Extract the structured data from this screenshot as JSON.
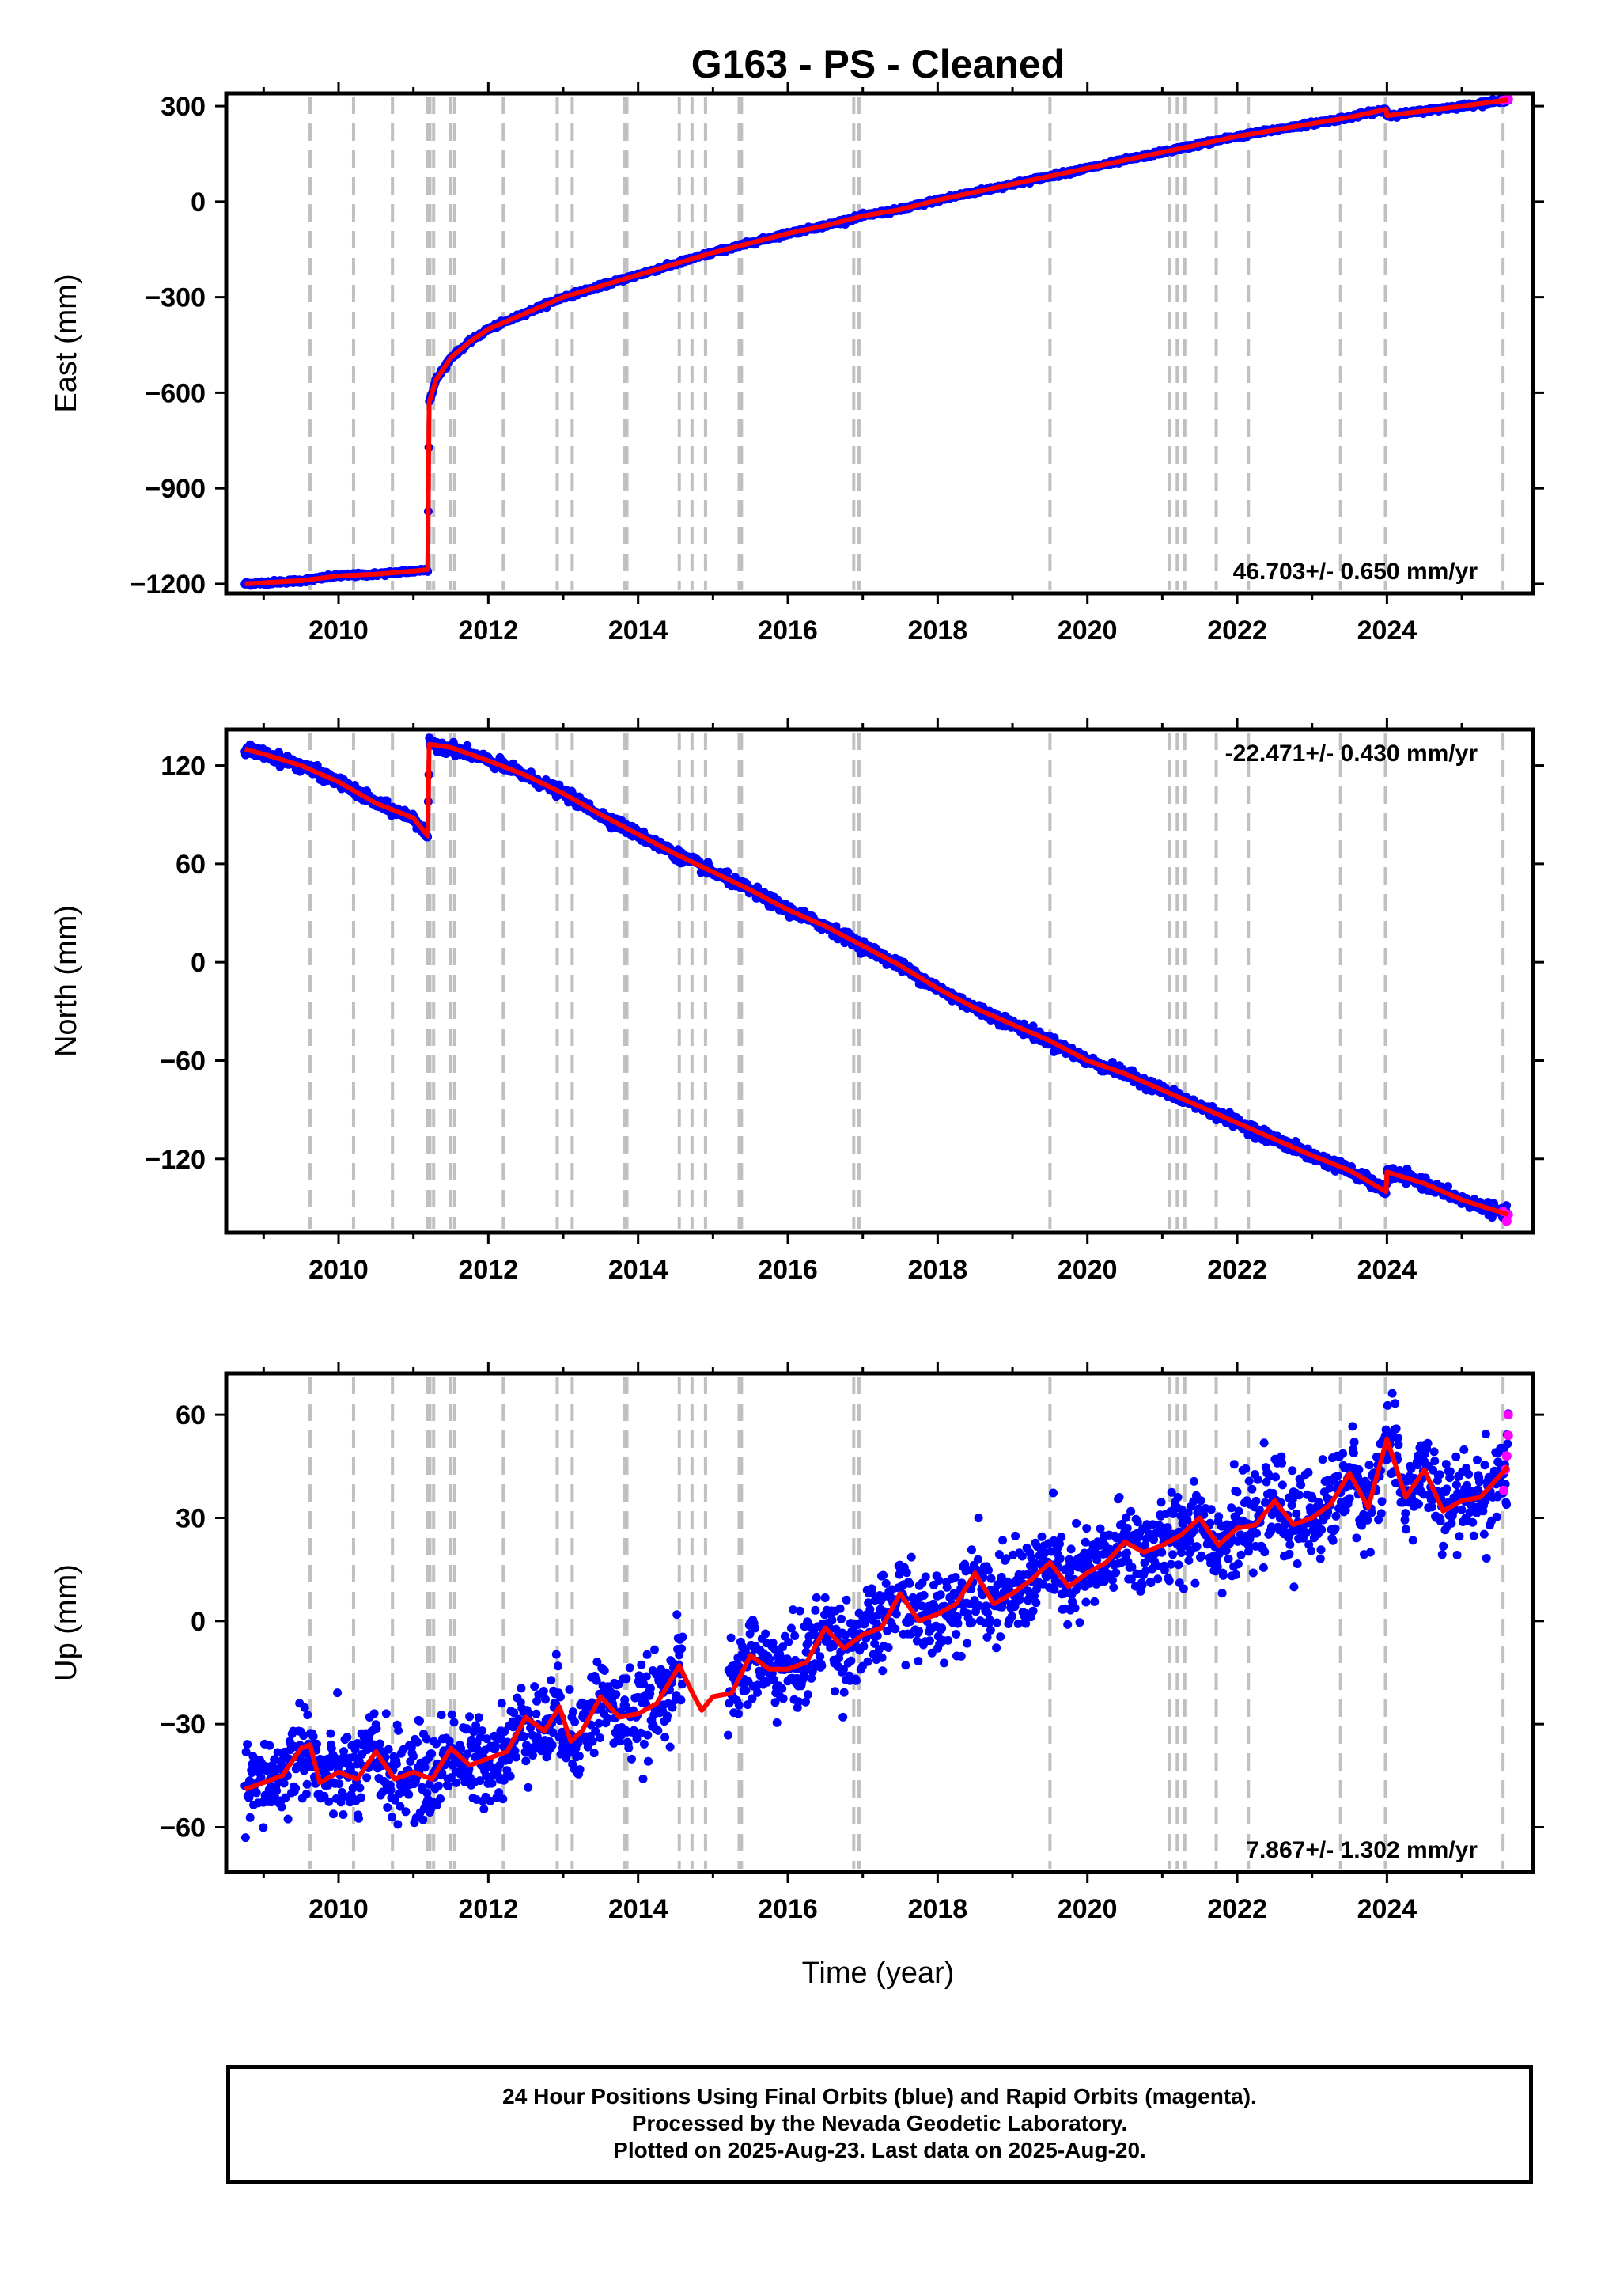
{
  "title": "G163  - PS - Cleaned",
  "xlabel": "Time (year)",
  "footer": {
    "line1": "24 Hour Positions Using Final Orbits (blue) and Rapid Orbits (magenta).",
    "line2": "Processed by the Nevada Geodetic Laboratory.",
    "line3": "Plotted on 2025-Aug-23. Last data on 2025-Aug-20."
  },
  "colors": {
    "final_orbits": "#0000ff",
    "rapid_orbits": "#ff00ff",
    "model": "#ff0000",
    "event_lines": "#c0c0c0"
  },
  "chart_data": [
    {
      "type": "scatter",
      "panel": "east",
      "ylabel": "East (mm)",
      "xlim": [
        2008.5,
        2025.95
      ],
      "ylim": [
        -1230,
        340
      ],
      "yticks": [
        300,
        0,
        -300,
        -600,
        -900,
        -1200
      ],
      "xticks": [
        2010,
        2012,
        2014,
        2016,
        2018,
        2020,
        2022,
        2024
      ],
      "rate_annotation": "46.703+/- 0.650 mm/yr",
      "rate_position": "bottom-right",
      "model_series": {
        "x": [
          2008.75,
          2009.5,
          2010.0,
          2010.5,
          2011.0,
          2011.19,
          2011.2,
          2011.21,
          2011.3,
          2011.5,
          2011.75,
          2012.0,
          2012.5,
          2013.0,
          2013.5,
          2014.0,
          2014.5,
          2015.0,
          2015.5,
          2016.0,
          2016.5,
          2017.0,
          2017.5,
          2018.0,
          2018.5,
          2019.0,
          2019.5,
          2020.0,
          2020.5,
          2021.0,
          2021.5,
          2022.0,
          2022.5,
          2023.0,
          2023.5,
          2023.99,
          2024.0,
          2024.5,
          2025.0,
          2025.62
        ],
        "y": [
          -1200,
          -1190,
          -1175,
          -1170,
          -1160,
          -1155,
          -900,
          -630,
          -560,
          -490,
          -440,
          -400,
          -350,
          -300,
          -265,
          -230,
          -195,
          -160,
          -130,
          -100,
          -75,
          -45,
          -25,
          5,
          30,
          55,
          80,
          105,
          130,
          155,
          180,
          205,
          225,
          245,
          265,
          290,
          270,
          285,
          300,
          320
        ]
      },
      "rapid_points": {
        "x": [
          2025.55,
          2025.6,
          2025.62
        ],
        "y": [
          318,
          320,
          322
        ]
      }
    },
    {
      "type": "scatter",
      "panel": "north",
      "ylabel": "North (mm)",
      "xlim": [
        2008.5,
        2025.95
      ],
      "ylim": [
        -165,
        142
      ],
      "yticks": [
        120,
        60,
        0,
        -60,
        -120
      ],
      "xticks": [
        2010,
        2012,
        2014,
        2016,
        2018,
        2020,
        2022,
        2024
      ],
      "rate_annotation": "-22.471+/- 0.430 mm/yr",
      "rate_position": "top-right",
      "model_series": {
        "x": [
          2008.75,
          2009.0,
          2009.5,
          2010.0,
          2010.5,
          2011.0,
          2011.19,
          2011.2,
          2011.21,
          2011.5,
          2012.0,
          2012.5,
          2013.0,
          2013.5,
          2014.0,
          2014.5,
          2015.0,
          2015.5,
          2016.0,
          2016.5,
          2017.0,
          2017.5,
          2018.0,
          2018.5,
          2019.0,
          2019.5,
          2020.0,
          2020.5,
          2021.0,
          2021.5,
          2022.0,
          2022.5,
          2023.0,
          2023.5,
          2023.99,
          2024.0,
          2024.5,
          2025.0,
          2025.62
        ],
        "y": [
          130,
          127,
          120,
          110,
          97,
          88,
          77,
          100,
          133,
          131,
          123,
          114,
          103,
          90,
          78,
          66,
          55,
          44,
          32,
          22,
          10,
          -2,
          -16,
          -28,
          -38,
          -48,
          -60,
          -68,
          -78,
          -88,
          -98,
          -108,
          -118,
          -127,
          -140,
          -128,
          -135,
          -145,
          -154
        ]
      },
      "rapid_points": {
        "x": [
          2025.55,
          2025.6,
          2025.62
        ],
        "y": [
          -152,
          -158,
          -154
        ]
      }
    },
    {
      "type": "scatter",
      "panel": "up",
      "ylabel": "Up (mm)",
      "xlim": [
        2008.5,
        2025.95
      ],
      "ylim": [
        -73,
        72
      ],
      "yticks": [
        60,
        30,
        0,
        -30,
        -60
      ],
      "xticks": [
        2010,
        2012,
        2014,
        2016,
        2018,
        2020,
        2022,
        2024
      ],
      "rate_annotation": "7.867+/- 1.302 mm/yr",
      "rate_position": "bottom-right",
      "model_series": {
        "x": [
          2008.75,
          2009.0,
          2009.25,
          2009.5,
          2009.62,
          2009.75,
          2010.0,
          2010.25,
          2010.5,
          2010.75,
          2011.0,
          2011.25,
          2011.5,
          2011.75,
          2012.0,
          2012.25,
          2012.5,
          2012.75,
          2012.95,
          2013.1,
          2013.25,
          2013.5,
          2013.75,
          2014.0,
          2014.25,
          2014.55,
          2014.75,
          2014.85,
          2015.0,
          2015.25,
          2015.5,
          2015.75,
          2016.0,
          2016.25,
          2016.5,
          2016.75,
          2017.0,
          2017.25,
          2017.5,
          2017.75,
          2018.0,
          2018.25,
          2018.5,
          2018.75,
          2019.0,
          2019.25,
          2019.5,
          2019.75,
          2020.0,
          2020.25,
          2020.5,
          2020.75,
          2021.0,
          2021.25,
          2021.5,
          2021.75,
          2022.0,
          2022.25,
          2022.5,
          2022.75,
          2023.0,
          2023.25,
          2023.5,
          2023.75,
          2024.0,
          2024.25,
          2024.5,
          2024.75,
          2025.0,
          2025.25,
          2025.62
        ],
        "y": [
          -49,
          -47,
          -45,
          -37,
          -36,
          -47,
          -44,
          -46,
          -38,
          -46,
          -44,
          -46,
          -37,
          -42,
          -40,
          -38,
          -28,
          -32,
          -25,
          -35,
          -32,
          -22,
          -28,
          -27,
          -24,
          -13,
          -22,
          -26,
          -22,
          -21,
          -10,
          -14,
          -14,
          -12,
          -2,
          -8,
          -4,
          -2,
          8,
          0,
          2,
          5,
          14,
          5,
          8,
          12,
          17,
          10,
          14,
          17,
          23,
          20,
          22,
          25,
          30,
          22,
          27,
          28,
          35,
          28,
          30,
          34,
          43,
          33,
          53,
          36,
          44,
          32,
          35,
          36,
          45
        ]
      },
      "rapid_points": {
        "x": [
          2025.56,
          2025.58,
          2025.6,
          2025.62,
          2025.62
        ],
        "y": [
          38,
          44,
          48,
          54,
          60
        ]
      }
    }
  ],
  "event_lines": [
    2009.62,
    2010.2,
    2010.72,
    2011.19,
    2011.22,
    2011.27,
    2011.5,
    2011.55,
    2012.2,
    2012.92,
    2013.12,
    2013.82,
    2013.85,
    2014.55,
    2014.72,
    2014.9,
    2015.35,
    2015.38,
    2016.88,
    2016.95,
    2019.5,
    2021.1,
    2021.2,
    2021.3,
    2021.72,
    2022.15,
    2023.38,
    2023.98,
    2025.55
  ]
}
